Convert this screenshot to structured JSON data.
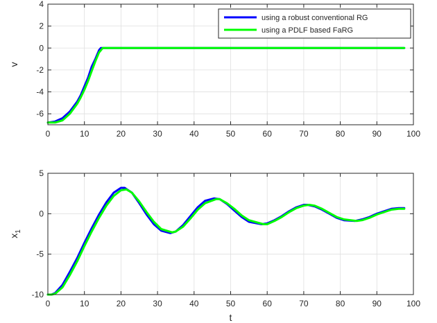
{
  "chart_data": [
    {
      "type": "line",
      "title": "",
      "xlabel": "",
      "ylabel": "v",
      "xlim": [
        0,
        100
      ],
      "ylim": [
        -7,
        4
      ],
      "xticks": [
        0,
        10,
        20,
        30,
        40,
        50,
        60,
        70,
        80,
        90,
        100
      ],
      "yticks": [
        -6,
        -4,
        -2,
        0,
        2,
        4
      ],
      "grid": true,
      "legend": "top-right",
      "series": [
        {
          "name": "using a robust conventional RG",
          "color": "#0000ff",
          "x": [
            0,
            2,
            4,
            6,
            8,
            9,
            10,
            11,
            12,
            13,
            14,
            14.5,
            20,
            30,
            40,
            50,
            60,
            70,
            80,
            90,
            97.5
          ],
          "y": [
            -6.8,
            -6.7,
            -6.4,
            -5.8,
            -4.9,
            -4.3,
            -3.5,
            -2.7,
            -1.7,
            -1.0,
            -0.2,
            0,
            0,
            0,
            0,
            0,
            0,
            0,
            0,
            0,
            0
          ]
        },
        {
          "name": "using a PDLF based FaRG",
          "color": "#00ff00",
          "x": [
            0,
            2,
            4,
            6,
            8,
            9,
            10,
            11,
            12,
            13,
            14,
            15,
            20,
            30,
            40,
            50,
            60,
            70,
            80,
            90,
            97.5
          ],
          "y": [
            -6.8,
            -6.8,
            -6.6,
            -6.0,
            -5.1,
            -4.5,
            -3.8,
            -3.0,
            -2.1,
            -1.2,
            -0.4,
            0,
            0,
            0,
            0,
            0,
            0,
            0,
            0,
            0,
            0
          ]
        }
      ]
    },
    {
      "type": "line",
      "title": "",
      "xlabel": "t",
      "ylabel": "x1",
      "ylabel_main": "x",
      "ylabel_sub": "1",
      "xlim": [
        0,
        100
      ],
      "ylim": [
        -10,
        5
      ],
      "xticks": [
        0,
        10,
        20,
        30,
        40,
        50,
        60,
        70,
        80,
        90,
        100
      ],
      "yticks": [
        -10,
        -5,
        0,
        5
      ],
      "grid": true,
      "series": [
        {
          "name": "using a robust conventional RG",
          "color": "#0000ff",
          "x": [
            0,
            1,
            2,
            4,
            6,
            8,
            10,
            12,
            14,
            16,
            18,
            20,
            21,
            23,
            25,
            27,
            29,
            31,
            33.5,
            35,
            37,
            39,
            41,
            43,
            45.5,
            47,
            49,
            51,
            53,
            55,
            58.5,
            60,
            62,
            64,
            66,
            68,
            70,
            71,
            73,
            75,
            77,
            79,
            81,
            84,
            86,
            88,
            90,
            92,
            94,
            96,
            97.5
          ],
          "y": [
            -10,
            -10,
            -9.8,
            -8.8,
            -7.2,
            -5.5,
            -3.6,
            -1.8,
            -0.1,
            1.4,
            2.6,
            3.2,
            3.2,
            2.6,
            1.3,
            -0.1,
            -1.3,
            -2.1,
            -2.4,
            -2.2,
            -1.4,
            -0.3,
            0.8,
            1.6,
            1.9,
            1.8,
            1.2,
            0.4,
            -0.4,
            -1.0,
            -1.3,
            -1.2,
            -0.8,
            -0.3,
            0.3,
            0.8,
            1.1,
            1.1,
            0.9,
            0.5,
            0,
            -0.5,
            -0.8,
            -0.9,
            -0.7,
            -0.4,
            0,
            0.3,
            0.6,
            0.7,
            0.7
          ]
        },
        {
          "name": "using a PDLF based FaRG",
          "color": "#00ff00",
          "x": [
            0,
            1,
            2,
            4,
            6,
            8,
            10,
            12,
            14,
            16,
            18,
            20,
            21.5,
            23,
            25,
            27,
            29,
            31,
            34,
            35,
            37,
            39,
            41,
            43,
            46,
            47,
            49,
            51,
            53,
            55,
            59,
            60,
            62,
            64,
            66,
            68,
            70,
            71.5,
            73,
            75,
            77,
            79,
            81,
            84.5,
            86,
            88,
            90,
            92,
            94,
            96,
            97.5
          ],
          "y": [
            -10,
            -10,
            -9.9,
            -9.1,
            -7.6,
            -5.9,
            -4.0,
            -2.2,
            -0.5,
            1.0,
            2.2,
            2.9,
            3.0,
            2.6,
            1.5,
            0.2,
            -1.0,
            -1.9,
            -2.3,
            -2.2,
            -1.6,
            -0.6,
            0.5,
            1.3,
            1.8,
            1.8,
            1.3,
            0.6,
            -0.2,
            -0.8,
            -1.3,
            -1.3,
            -0.9,
            -0.4,
            0.2,
            0.7,
            1.0,
            1.1,
            1.0,
            0.6,
            0.1,
            -0.4,
            -0.7,
            -0.9,
            -0.8,
            -0.5,
            -0.1,
            0.2,
            0.5,
            0.6,
            0.6
          ]
        }
      ]
    }
  ]
}
